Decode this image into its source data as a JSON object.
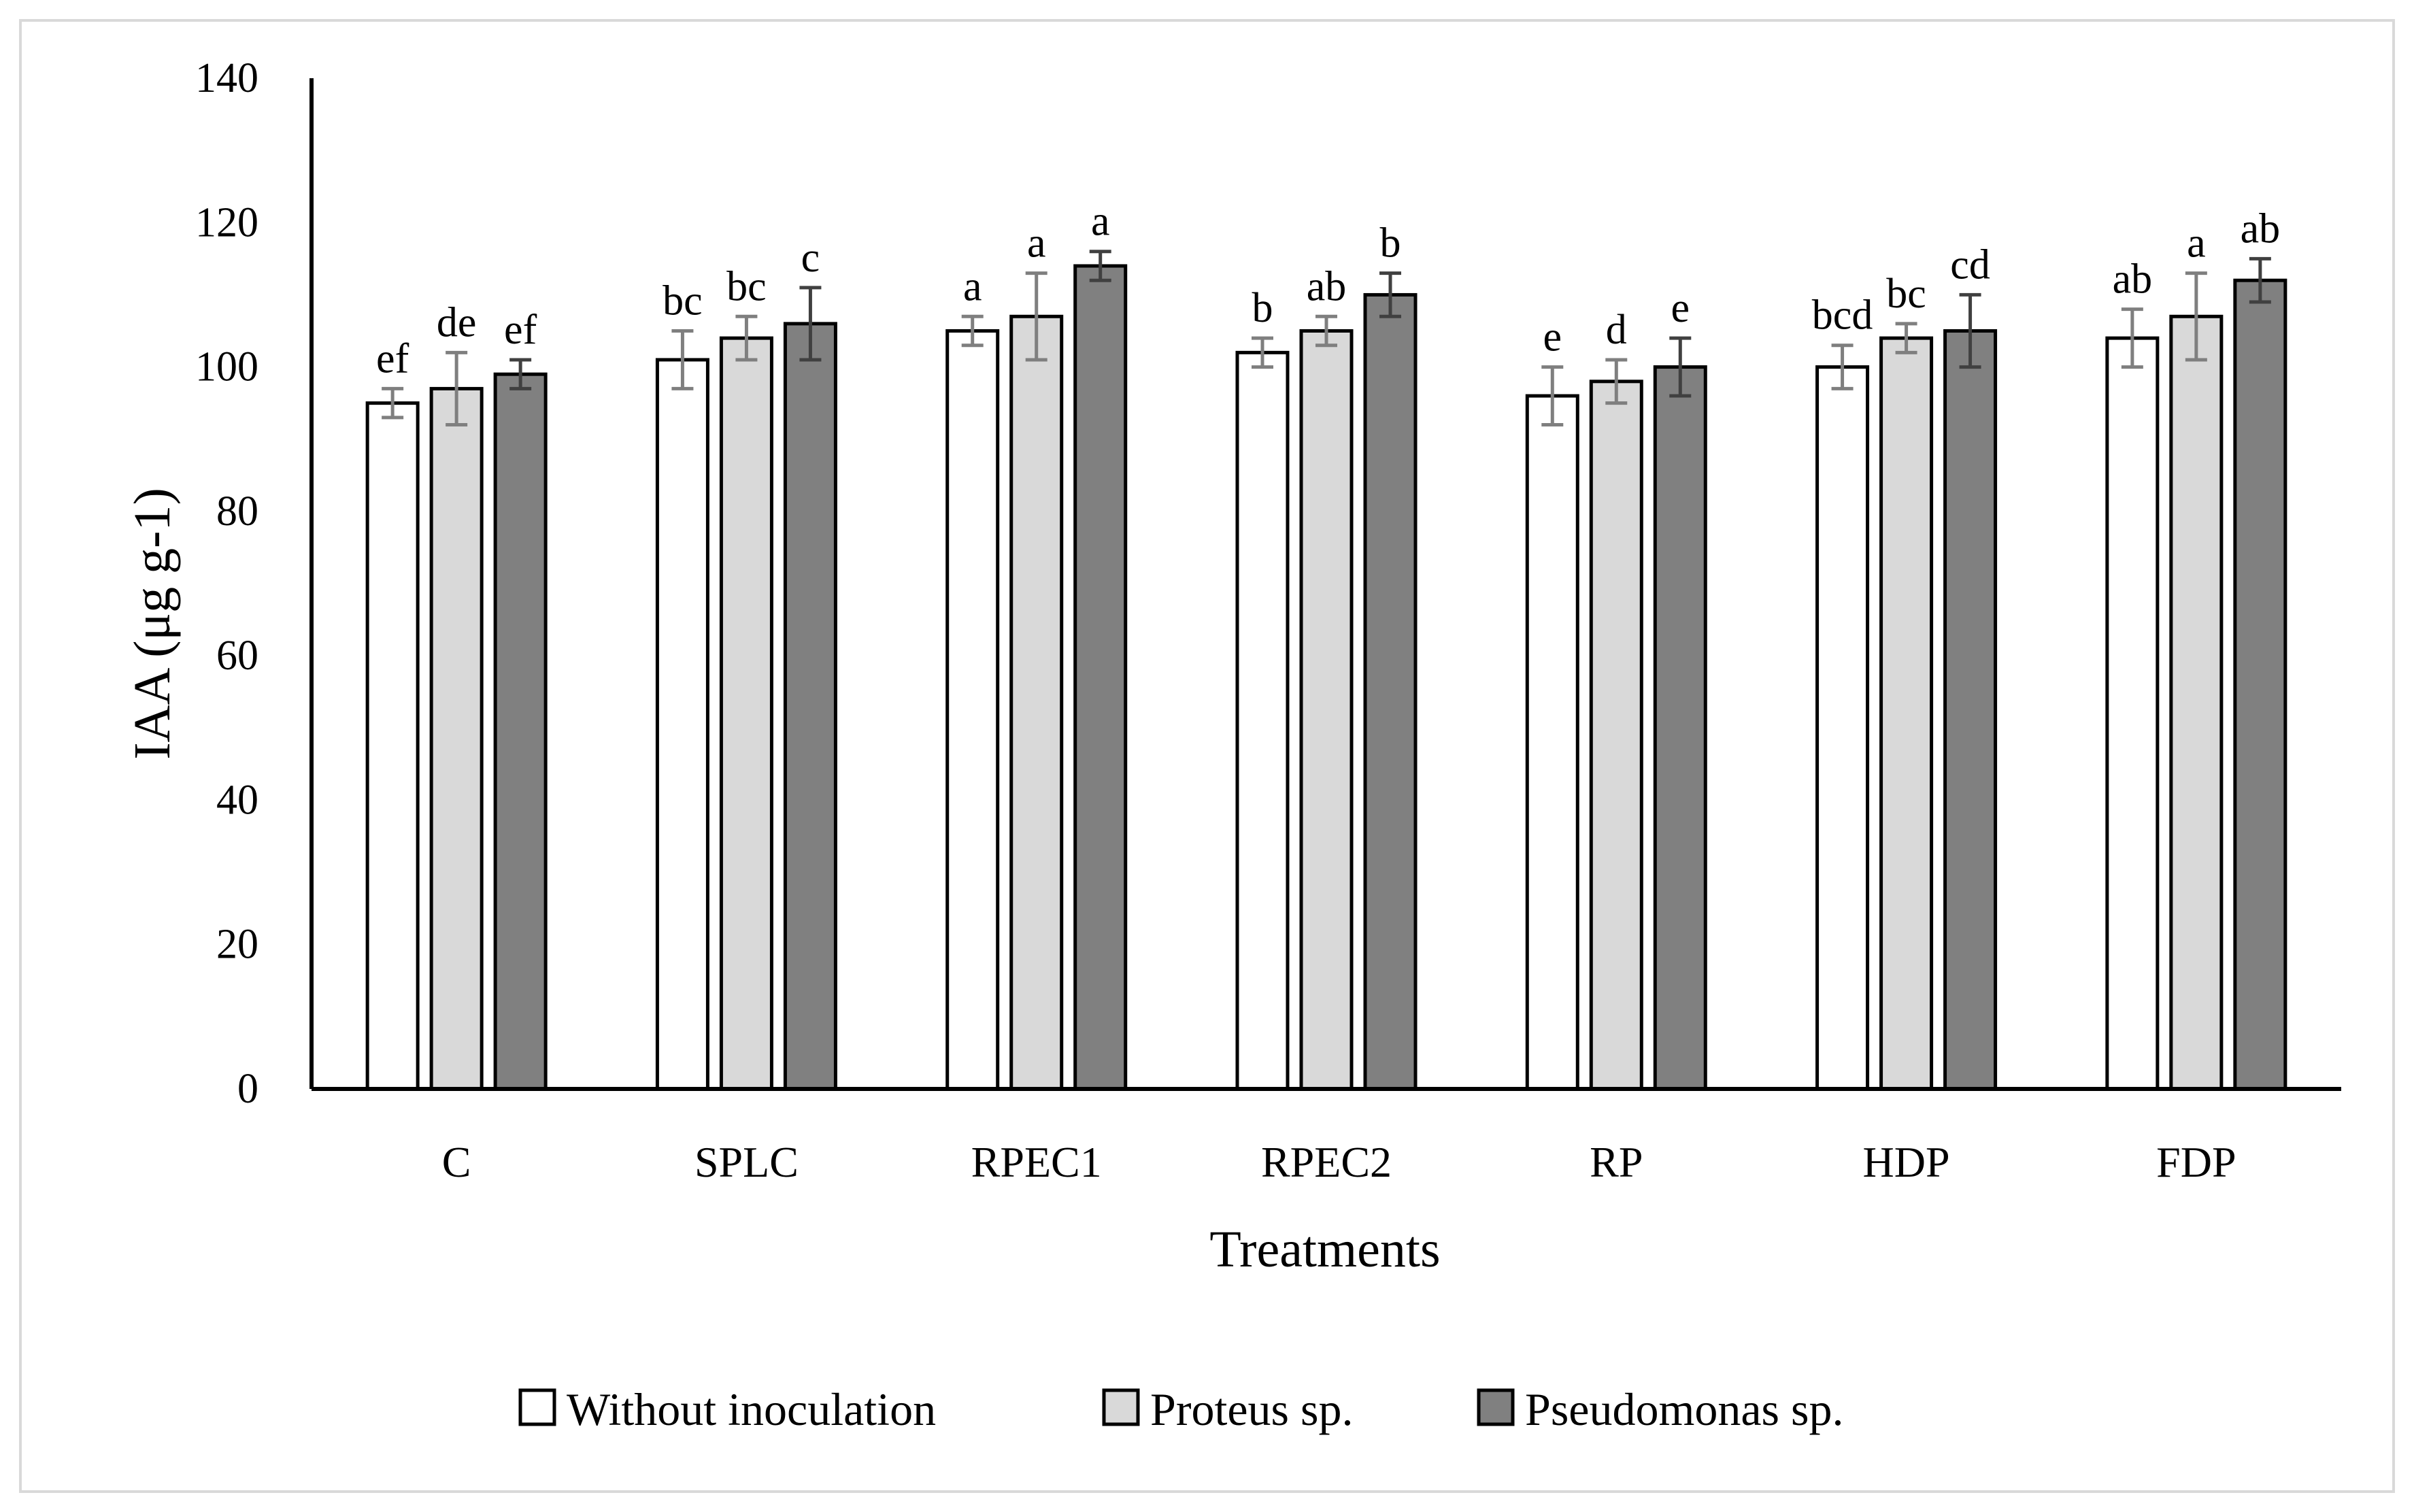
{
  "chart_data": {
    "type": "bar",
    "title": "",
    "xlabel": "Treatments",
    "ylabel": "IAA (μg g-1)",
    "ylim": [
      0,
      140
    ],
    "yticks": [
      0,
      20,
      40,
      60,
      80,
      100,
      120,
      140
    ],
    "grid": false,
    "legend_position": "bottom",
    "categories": [
      "C",
      "SPLC",
      "RPEC1",
      "RPEC2",
      "RP",
      "HDP",
      "FDP"
    ],
    "series": [
      {
        "name": "Without inoculation",
        "color": "#ffffff",
        "values": [
          95,
          101,
          105,
          102,
          96,
          100,
          104
        ],
        "errors": [
          2,
          4,
          2,
          2,
          4,
          3,
          4
        ],
        "letters": [
          "ef",
          "bc",
          "a",
          "b",
          "e",
          "bcd",
          "ab"
        ]
      },
      {
        "name": "Proteus sp.",
        "color": "#d9d9d9",
        "values": [
          97,
          104,
          107,
          105,
          98,
          104,
          107
        ],
        "errors": [
          5,
          3,
          6,
          2,
          3,
          2,
          6
        ],
        "letters": [
          "de",
          "bc",
          "a",
          "ab",
          "d",
          "bc",
          "a"
        ]
      },
      {
        "name": "Pseudomonas sp.",
        "color": "#808080",
        "values": [
          99,
          106,
          114,
          110,
          100,
          105,
          112
        ],
        "errors": [
          2,
          5,
          2,
          3,
          4,
          5,
          3
        ],
        "letters": [
          "ef",
          "c",
          "a",
          "b",
          "e",
          "cd",
          "ab"
        ]
      }
    ]
  }
}
